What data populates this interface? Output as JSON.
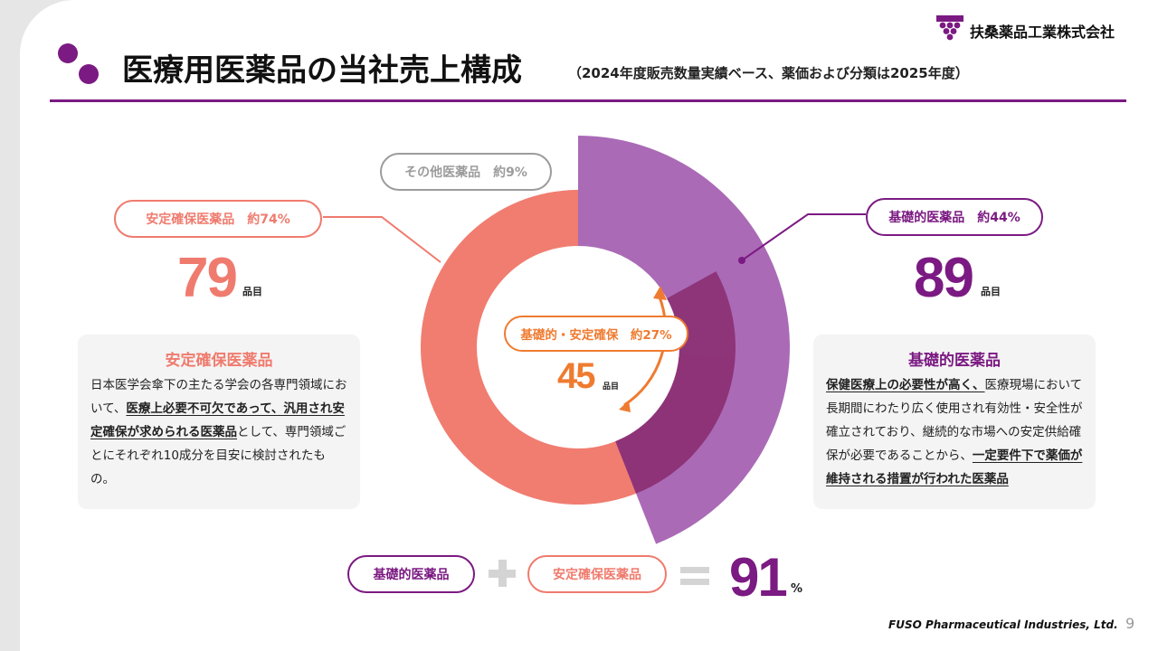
{
  "header": {
    "title": "医療用医薬品の当社売上構成",
    "subtitle": "（2024年度販売数量実績ベース、薬価および分類は2025年度）",
    "company": "扶桑薬品工業株式会社"
  },
  "colors": {
    "purple": "#7b1a82",
    "coral": "#ef7b6e",
    "gray": "#9c9c9c",
    "orange": "#ef7b30"
  },
  "chart_data": {
    "type": "donut",
    "series": [
      {
        "name": "基礎的医薬品",
        "value": 44,
        "color": "#a45fb0"
      },
      {
        "name": "安定確保医薬品",
        "value": 74,
        "color": "#f07d70"
      },
      {
        "name": "その他医薬品",
        "value": 9,
        "color": "#f3f3f3"
      },
      {
        "name": "基礎的・安定確保",
        "value": 27,
        "color": "#8a2b6e"
      }
    ]
  },
  "left": {
    "label": "安定確保医薬品　約74%",
    "count": "79",
    "unit": "品目",
    "card_title": "安定確保医薬品",
    "card_text_1": "日本医学会傘下の主たる学会の各専門領域において、",
    "card_text_u": "医療上必要不可欠であって、汎用され安定確保が求められる医薬品",
    "card_text_2": "として、専門領域ごとにそれぞれ10成分を目安に検討されたもの。"
  },
  "right": {
    "label": "基礎的医薬品　約44%",
    "count": "89",
    "unit": "品目",
    "card_title": "基礎的医薬品",
    "card_text_u1": "保健医療上の必要性が高く、",
    "card_text_1": "医療現場において長期間にわたり広く使用され有効性・安全性が確立されており、継続的な市場への安定供給確保が必要であることから、",
    "card_text_u2": "一定要件下で薬価が維持される措置が行われた医薬品"
  },
  "other": {
    "label": "その他医薬品　約9%"
  },
  "center": {
    "label": "基礎的・安定確保　約27%",
    "count": "45",
    "unit": "品目"
  },
  "bottom": {
    "pill1": "基礎的医薬品",
    "pill2": "安定確保医薬品",
    "total": "91",
    "percent": "%"
  },
  "footer": {
    "name": "FUSO Pharmaceutical Industries, Ltd.",
    "page": "9"
  }
}
